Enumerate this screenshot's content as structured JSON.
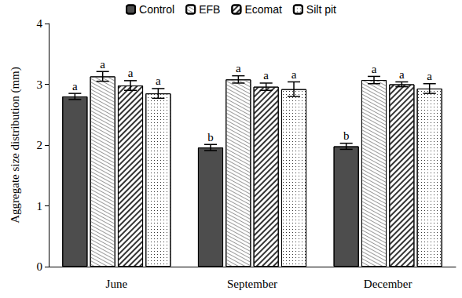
{
  "chart_data": {
    "type": "bar",
    "y_label": "Aggregate size distribution (mm)",
    "categories": [
      "June",
      "September",
      "December"
    ],
    "series": [
      {
        "name": "Control",
        "color": "#4d4d4d",
        "values": [
          2.8,
          1.96,
          1.98
        ],
        "errors": [
          0.05,
          0.05,
          0.05
        ],
        "letters": [
          "a",
          "b",
          "b"
        ]
      },
      {
        "name": "EFB",
        "color": "#ffffff",
        "values": [
          3.13,
          3.08,
          3.07
        ],
        "errors": [
          0.08,
          0.06,
          0.06
        ],
        "letters": [
          "a",
          "a",
          "a"
        ]
      },
      {
        "name": "Ecomat",
        "color": "#ffffff",
        "values": [
          2.98,
          2.96,
          3.0
        ],
        "errors": [
          0.08,
          0.06,
          0.04
        ],
        "letters": [
          "a",
          "a",
          "a"
        ]
      },
      {
        "name": "Silt pit",
        "color": "#ffffff",
        "values": [
          2.85,
          2.92,
          2.93
        ],
        "errors": [
          0.08,
          0.12,
          0.08
        ],
        "letters": [
          "a",
          "a",
          "a"
        ]
      }
    ],
    "ylim": [
      0,
      4
    ],
    "yticks": [
      0,
      1,
      2,
      3,
      4
    ],
    "grid": false,
    "legend": "top"
  }
}
